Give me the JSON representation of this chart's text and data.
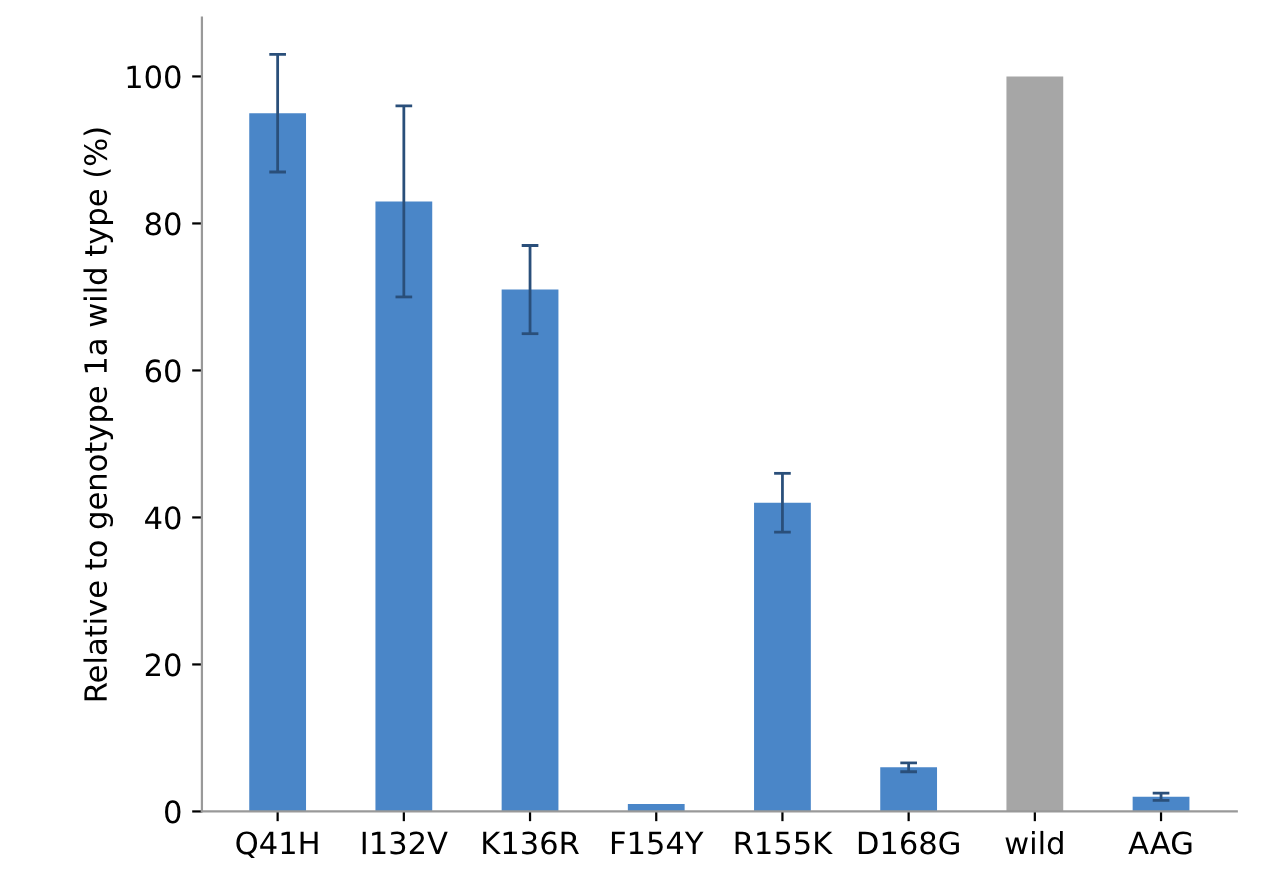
{
  "chart_data": {
    "type": "bar",
    "ylabel": "Relative to genotype 1a wild type (%)",
    "categories": [
      "Q41H",
      "I132V",
      "K136R",
      "F154Y",
      "R155K",
      "D168G",
      "wild",
      "AAG"
    ],
    "values": [
      95,
      83,
      71,
      1,
      42,
      6,
      100,
      2
    ],
    "errors": [
      8,
      13,
      6,
      null,
      4,
      0.6,
      null,
      0.5
    ],
    "colors": [
      "#4a86c8",
      "#4a86c8",
      "#4a86c8",
      "#4a86c8",
      "#4a86c8",
      "#4a86c8",
      "#a6a6a6",
      "#4a86c8"
    ],
    "ylim": [
      0,
      108
    ],
    "yticks": [
      0,
      20,
      40,
      60,
      80,
      100
    ],
    "grid": false
  }
}
